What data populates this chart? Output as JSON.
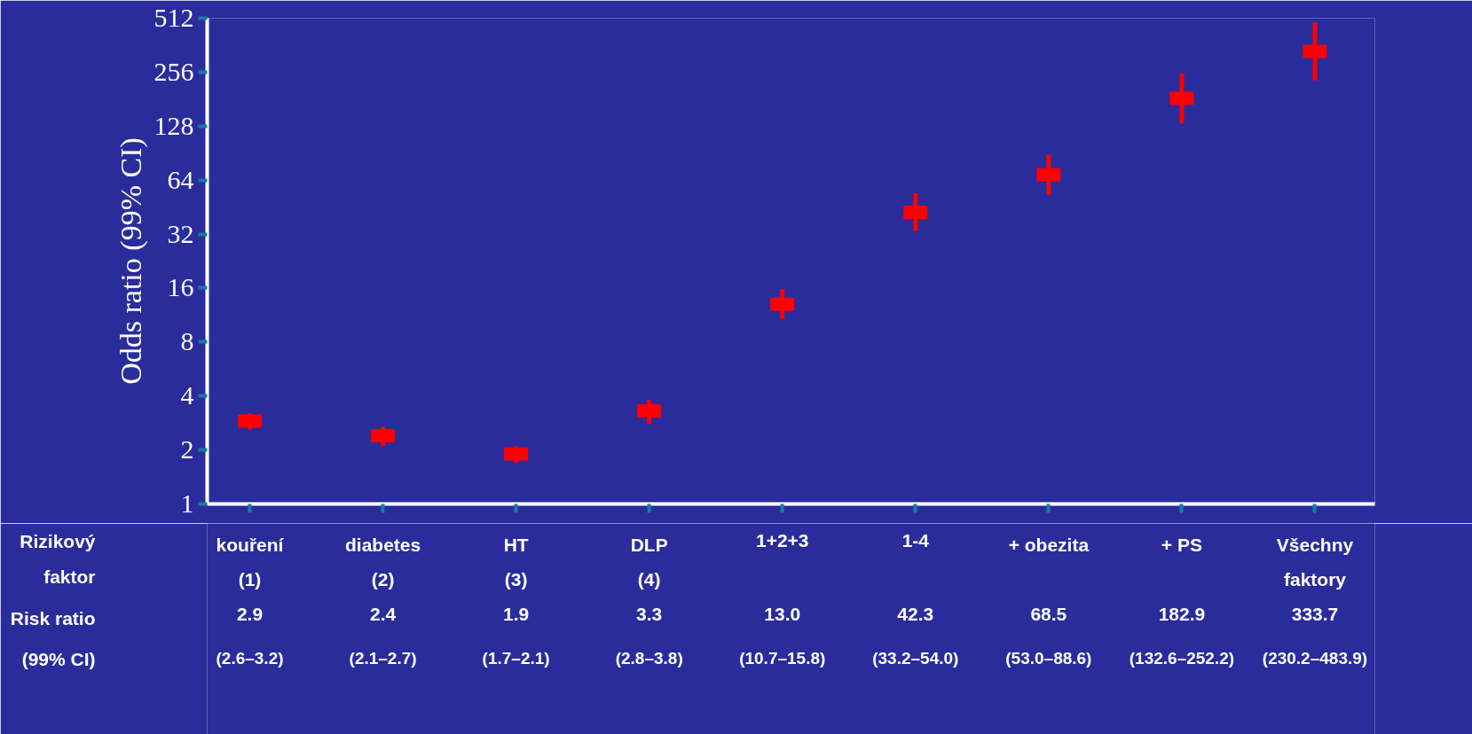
{
  "chart_data": {
    "type": "scatter",
    "ylabel": "Odds ratio (99% CI)",
    "categories": [
      "kouření\n(1)",
      "diabetes\n(2)",
      "HT\n(3)",
      "DLP\n(4)",
      "1+2+3",
      "1-4",
      "+ obezita",
      "+ PS",
      "Všechny\nfaktory"
    ],
    "values": [
      2.9,
      2.4,
      1.9,
      3.3,
      13.0,
      42.3,
      68.5,
      182.9,
      333.7
    ],
    "value_labels": [
      "2.9",
      "2.4",
      "1.9",
      "3.3",
      "13.0",
      "42.3",
      "68.5",
      "182.9",
      "333.7"
    ],
    "errors": [
      [
        2.6,
        3.2
      ],
      [
        2.1,
        2.7
      ],
      [
        1.7,
        2.1
      ],
      [
        2.8,
        3.8
      ],
      [
        10.7,
        15.8
      ],
      [
        33.2,
        54.0
      ],
      [
        53.0,
        88.6
      ],
      [
        132.6,
        252.2
      ],
      [
        230.2,
        483.9
      ]
    ],
    "color": "#ff0000",
    "marker": "square",
    "log": true,
    "grid": false,
    "tick_labels": "y",
    "ylim": [
      1,
      512
    ],
    "yticks": [
      1,
      2,
      4,
      8,
      16,
      32,
      64,
      128,
      256,
      512
    ],
    "annotations": [
      "Rizikový\nfaktor",
      "Risk ratio",
      "(99% CI)",
      "(2.6–3.2)",
      "(2.1–2.7)",
      "(1.7–2.1)",
      "(2.8–3.8)",
      "(10.7–15.8)",
      "(33.2–54.0)",
      "(53.0–88.6)",
      "(132.6–252.2)",
      "(230.2–483.9)"
    ]
  }
}
